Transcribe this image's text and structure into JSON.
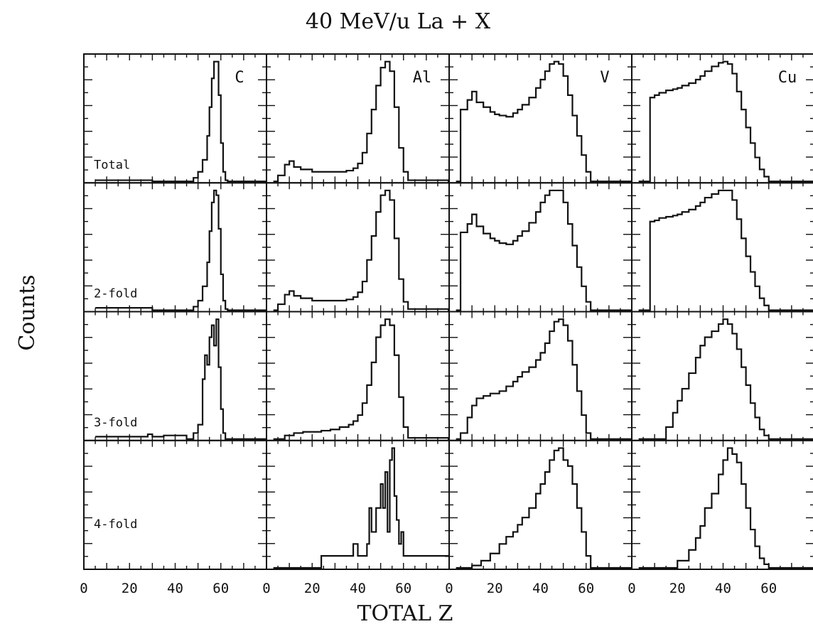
{
  "chart_data": {
    "type": "line",
    "title": "40 MeV/u La + X",
    "xlabel": "TOTAL Z",
    "ylabel": "Counts",
    "xlim": [
      0,
      80
    ],
    "x_ticks": [
      0,
      20,
      40,
      60
    ],
    "targets": [
      "C",
      "Al",
      "V",
      "Cu"
    ],
    "multiplicities": [
      "Total",
      "2-fold",
      "3-fold",
      "4-fold"
    ],
    "panels": [
      {
        "row": 0,
        "col": 0,
        "series": [
          {
            "x": [
              5,
              15,
              30,
              45,
              48,
              50,
              52,
              54,
              55,
              56,
              57,
              58,
              59,
              60,
              61,
              62,
              63,
              80
            ],
            "y": [
              0.01,
              0.01,
              0.0,
              0.0,
              0.03,
              0.08,
              0.18,
              0.38,
              0.62,
              0.86,
              1.0,
              1.0,
              0.72,
              0.32,
              0.08,
              0.01,
              0.0,
              0.0
            ]
          }
        ]
      },
      {
        "row": 0,
        "col": 1,
        "series": [
          {
            "x": [
              3,
              5,
              8,
              10,
              12,
              15,
              20,
              25,
              30,
              35,
              38,
              40,
              42,
              44,
              46,
              48,
              50,
              52,
              54,
              56,
              58,
              60,
              62,
              80
            ],
            "y": [
              0.0,
              0.05,
              0.14,
              0.17,
              0.12,
              0.1,
              0.08,
              0.08,
              0.08,
              0.09,
              0.11,
              0.15,
              0.24,
              0.4,
              0.6,
              0.8,
              0.95,
              1.0,
              0.92,
              0.62,
              0.28,
              0.08,
              0.01,
              0.0
            ]
          }
        ]
      },
      {
        "row": 0,
        "col": 2,
        "series": [
          {
            "x": [
              3,
              5,
              8,
              10,
              12,
              15,
              18,
              20,
              22,
              25,
              28,
              30,
              32,
              35,
              38,
              40,
              42,
              44,
              46,
              48,
              50,
              52,
              54,
              56,
              58,
              60,
              62,
              80
            ],
            "y": [
              0.0,
              0.6,
              0.68,
              0.75,
              0.66,
              0.62,
              0.58,
              0.56,
              0.55,
              0.54,
              0.57,
              0.6,
              0.64,
              0.7,
              0.78,
              0.85,
              0.92,
              0.98,
              1.0,
              0.98,
              0.88,
              0.72,
              0.55,
              0.38,
              0.22,
              0.08,
              0.0,
              0.0
            ]
          }
        ]
      },
      {
        "row": 0,
        "col": 3,
        "series": [
          {
            "x": [
              3,
              5,
              8,
              10,
              12,
              15,
              18,
              20,
              22,
              25,
              28,
              30,
              32,
              35,
              38,
              40,
              42,
              44,
              46,
              48,
              50,
              52,
              54,
              56,
              58,
              60,
              62,
              80
            ],
            "y": [
              0.0,
              0.0,
              0.7,
              0.72,
              0.74,
              0.76,
              0.77,
              0.78,
              0.8,
              0.82,
              0.85,
              0.88,
              0.92,
              0.96,
              0.99,
              1.0,
              0.98,
              0.9,
              0.75,
              0.6,
              0.45,
              0.32,
              0.2,
              0.1,
              0.04,
              0.0,
              0.0,
              0.0
            ]
          }
        ]
      },
      {
        "row": 1,
        "col": 0,
        "series": [
          {
            "x": [
              5,
              15,
              30,
              45,
              48,
              50,
              52,
              54,
              55,
              56,
              57,
              58,
              59,
              60,
              61,
              62,
              63,
              80
            ],
            "y": [
              0.02,
              0.02,
              0.0,
              0.0,
              0.03,
              0.08,
              0.2,
              0.4,
              0.66,
              0.9,
              1.0,
              0.96,
              0.68,
              0.3,
              0.08,
              0.01,
              0.0,
              0.0
            ]
          }
        ]
      },
      {
        "row": 1,
        "col": 1,
        "series": [
          {
            "x": [
              3,
              5,
              8,
              10,
              12,
              15,
              20,
              25,
              30,
              35,
              38,
              40,
              42,
              44,
              46,
              48,
              50,
              52,
              54,
              56,
              58,
              60,
              62,
              80
            ],
            "y": [
              0.0,
              0.05,
              0.13,
              0.16,
              0.12,
              0.1,
              0.08,
              0.08,
              0.08,
              0.09,
              0.11,
              0.15,
              0.24,
              0.42,
              0.62,
              0.82,
              0.96,
              1.0,
              0.92,
              0.6,
              0.26,
              0.07,
              0.01,
              0.0
            ]
          }
        ]
      },
      {
        "row": 1,
        "col": 2,
        "series": [
          {
            "x": [
              3,
              5,
              8,
              10,
              12,
              15,
              18,
              20,
              22,
              25,
              28,
              30,
              32,
              35,
              38,
              40,
              42,
              44,
              46,
              48,
              50,
              52,
              54,
              56,
              58,
              60,
              62,
              80
            ],
            "y": [
              0.0,
              0.65,
              0.72,
              0.8,
              0.7,
              0.64,
              0.6,
              0.58,
              0.56,
              0.55,
              0.58,
              0.62,
              0.66,
              0.73,
              0.82,
              0.9,
              0.96,
              1.0,
              1.0,
              1.0,
              0.9,
              0.72,
              0.54,
              0.36,
              0.2,
              0.07,
              0.0,
              0.0
            ]
          }
        ]
      },
      {
        "row": 1,
        "col": 3,
        "series": [
          {
            "x": [
              3,
              5,
              8,
              10,
              12,
              15,
              18,
              20,
              22,
              25,
              28,
              30,
              32,
              35,
              38,
              40,
              42,
              44,
              46,
              48,
              50,
              52,
              54,
              56,
              58,
              60,
              62,
              80
            ],
            "y": [
              0.0,
              0.0,
              0.74,
              0.75,
              0.77,
              0.78,
              0.79,
              0.8,
              0.82,
              0.84,
              0.87,
              0.9,
              0.94,
              0.97,
              1.0,
              1.0,
              1.0,
              0.92,
              0.76,
              0.6,
              0.45,
              0.32,
              0.2,
              0.1,
              0.04,
              0.0,
              0.0,
              0.0
            ]
          }
        ]
      },
      {
        "row": 2,
        "col": 0,
        "series": [
          {
            "x": [
              5,
              20,
              28,
              30,
              35,
              40,
              45,
              48,
              50,
              52,
              53,
              54,
              55,
              56,
              57,
              58,
              59,
              60,
              61,
              62,
              80
            ],
            "y": [
              0.02,
              0.02,
              0.04,
              0.02,
              0.03,
              0.03,
              0.0,
              0.05,
              0.12,
              0.5,
              0.7,
              0.62,
              0.85,
              0.95,
              0.78,
              1.0,
              0.6,
              0.25,
              0.05,
              0.0,
              0.0
            ]
          }
        ]
      },
      {
        "row": 2,
        "col": 1,
        "series": [
          {
            "x": [
              3,
              8,
              12,
              16,
              20,
              24,
              28,
              32,
              36,
              38,
              40,
              42,
              44,
              46,
              48,
              50,
              52,
              54,
              56,
              58,
              60,
              62,
              80
            ],
            "y": [
              0.0,
              0.03,
              0.05,
              0.06,
              0.06,
              0.07,
              0.08,
              0.1,
              0.12,
              0.15,
              0.2,
              0.3,
              0.45,
              0.64,
              0.85,
              0.95,
              1.0,
              0.95,
              0.7,
              0.35,
              0.1,
              0.01,
              0.0
            ]
          }
        ]
      },
      {
        "row": 2,
        "col": 2,
        "series": [
          {
            "x": [
              3,
              5,
              8,
              10,
              12,
              15,
              18,
              20,
              22,
              25,
              28,
              30,
              32,
              35,
              38,
              40,
              42,
              44,
              46,
              48,
              50,
              52,
              54,
              56,
              58,
              60,
              62,
              80
            ],
            "y": [
              0.0,
              0.05,
              0.18,
              0.28,
              0.34,
              0.36,
              0.38,
              0.38,
              0.4,
              0.44,
              0.48,
              0.52,
              0.56,
              0.6,
              0.66,
              0.72,
              0.8,
              0.9,
              0.98,
              1.0,
              0.95,
              0.82,
              0.62,
              0.4,
              0.2,
              0.05,
              0.0,
              0.0
            ]
          }
        ]
      },
      {
        "row": 2,
        "col": 3,
        "series": [
          {
            "x": [
              3,
              10,
              15,
              18,
              20,
              22,
              25,
              28,
              30,
              32,
              35,
              38,
              40,
              42,
              44,
              46,
              48,
              50,
              52,
              54,
              56,
              58,
              60,
              62,
              80
            ],
            "y": [
              0.0,
              0.0,
              0.1,
              0.22,
              0.32,
              0.42,
              0.55,
              0.68,
              0.78,
              0.85,
              0.9,
              0.96,
              1.0,
              0.96,
              0.88,
              0.75,
              0.6,
              0.45,
              0.3,
              0.18,
              0.08,
              0.03,
              0.0,
              0.0,
              0.0
            ]
          }
        ]
      },
      {
        "row": 3,
        "col": 0,
        "series": []
      },
      {
        "row": 3,
        "col": 1,
        "series": [
          {
            "x": [
              3,
              20,
              24,
              30,
              36,
              38,
              40,
              42,
              44,
              45,
              46,
              48,
              50,
              51,
              52,
              53,
              54,
              55,
              56,
              57,
              58,
              59,
              60,
              62,
              80
            ],
            "y": [
              0.0,
              0.0,
              0.1,
              0.1,
              0.1,
              0.2,
              0.1,
              0.1,
              0.2,
              0.5,
              0.3,
              0.5,
              0.7,
              0.5,
              0.8,
              0.3,
              0.9,
              1.0,
              0.6,
              0.4,
              0.2,
              0.3,
              0.1,
              0.1,
              0.1
            ]
          }
        ]
      },
      {
        "row": 3,
        "col": 2,
        "series": [
          {
            "x": [
              3,
              10,
              14,
              18,
              22,
              25,
              28,
              30,
              32,
              35,
              38,
              40,
              42,
              44,
              46,
              48,
              50,
              52,
              54,
              56,
              58,
              60,
              62,
              80
            ],
            "y": [
              0.0,
              0.02,
              0.06,
              0.12,
              0.2,
              0.26,
              0.3,
              0.36,
              0.42,
              0.5,
              0.62,
              0.7,
              0.8,
              0.9,
              0.98,
              1.0,
              0.9,
              0.85,
              0.7,
              0.5,
              0.3,
              0.1,
              0.0,
              0.0
            ]
          }
        ]
      },
      {
        "row": 3,
        "col": 3,
        "series": [
          {
            "x": [
              3,
              15,
              20,
              25,
              28,
              30,
              32,
              35,
              38,
              40,
              42,
              44,
              46,
              48,
              50,
              52,
              54,
              56,
              58,
              60,
              62,
              80
            ],
            "y": [
              0.0,
              0.0,
              0.06,
              0.15,
              0.25,
              0.35,
              0.5,
              0.62,
              0.78,
              0.9,
              1.0,
              0.95,
              0.88,
              0.7,
              0.5,
              0.32,
              0.18,
              0.08,
              0.03,
              0.0,
              0.0,
              0.0
            ]
          }
        ]
      }
    ]
  }
}
